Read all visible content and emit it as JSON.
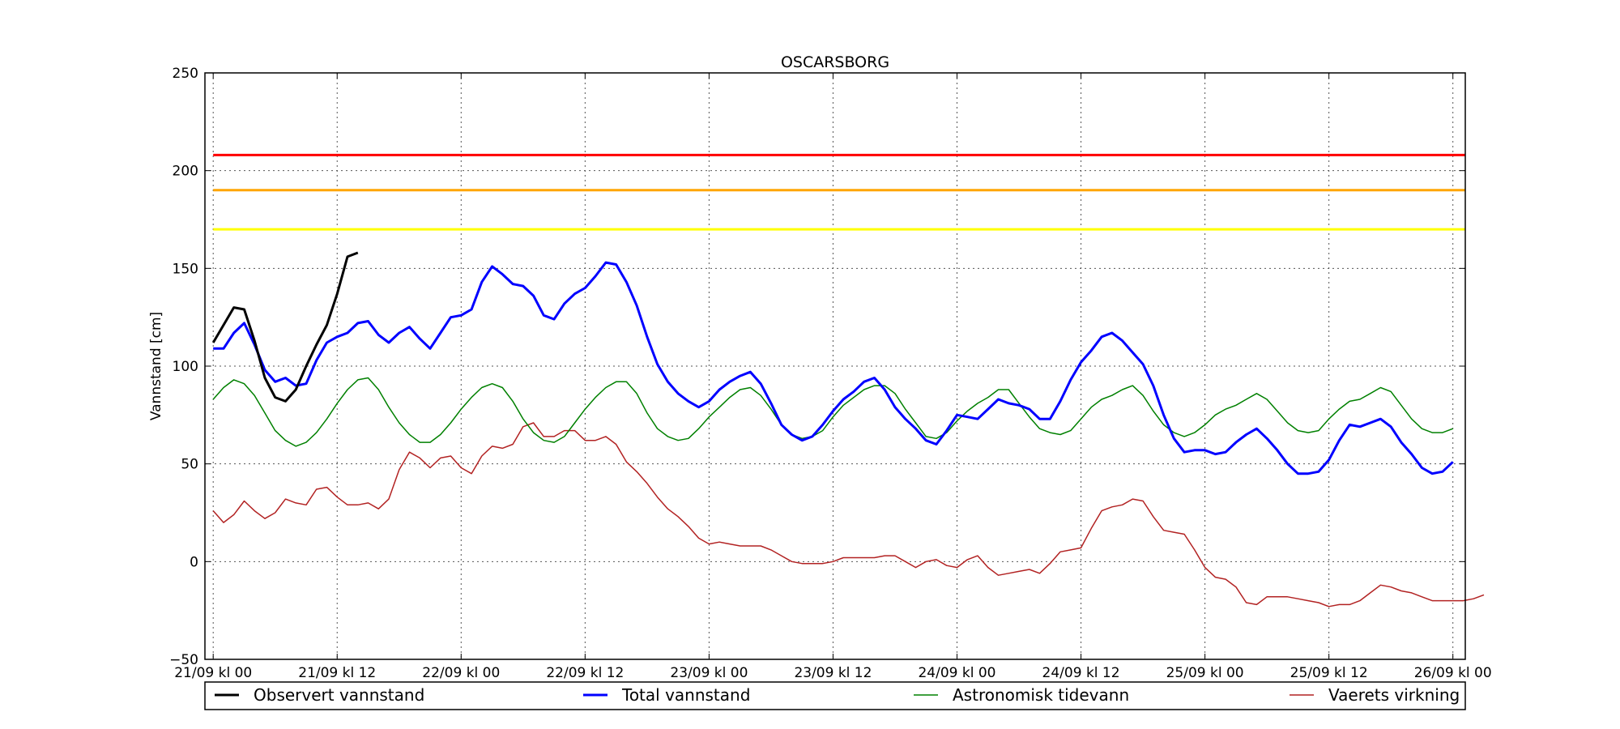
{
  "chart_data": {
    "type": "line",
    "title": "OSCARSBORG",
    "xlabel": "",
    "ylabel": "Vannstand [cm]",
    "ylim": [
      -50,
      250
    ],
    "yticks": [
      -50,
      0,
      50,
      100,
      150,
      200,
      250
    ],
    "xlim": [
      -0.8,
      121.2
    ],
    "x_unit": "hours since 21/09 kl 00",
    "xticks": [
      {
        "x": 0,
        "label": "21/09 kl 00"
      },
      {
        "x": 12,
        "label": "21/09 kl 12"
      },
      {
        "x": 24,
        "label": "22/09 kl 00"
      },
      {
        "x": 36,
        "label": "22/09 kl 12"
      },
      {
        "x": 48,
        "label": "23/09 kl 00"
      },
      {
        "x": 60,
        "label": "23/09 kl 12"
      },
      {
        "x": 72,
        "label": "24/09 kl 00"
      },
      {
        "x": 84,
        "label": "24/09 kl 12"
      },
      {
        "x": 96,
        "label": "25/09 kl 00"
      },
      {
        "x": 108,
        "label": "25/09 kl 12"
      },
      {
        "x": 120,
        "label": "26/09 kl 00"
      }
    ],
    "grid": true,
    "legend": "bottom",
    "thresholds": [
      {
        "value": 208,
        "color": "#ff0000"
      },
      {
        "value": 190,
        "color": "#ffa500"
      },
      {
        "value": 170,
        "color": "#ffff00"
      }
    ],
    "series": [
      {
        "name": "Observert vannstand",
        "color": "#000000",
        "width": 3,
        "x_start": 0,
        "x_step": 1,
        "values": [
          112,
          121,
          130,
          129,
          113,
          94,
          84,
          82,
          88,
          100,
          111,
          121,
          137,
          156,
          158
        ]
      },
      {
        "name": "Total vannstand",
        "color": "#0000ff",
        "width": 3,
        "x_start": 0,
        "x_step": 1,
        "values": [
          109,
          109,
          117,
          122,
          111,
          98,
          92,
          94,
          90,
          91,
          103,
          112,
          115,
          117,
          122,
          123,
          116,
          112,
          117,
          120,
          114,
          109,
          117,
          125,
          126,
          129,
          143,
          151,
          147,
          142,
          141,
          136,
          126,
          124,
          132,
          137,
          140,
          146,
          153,
          152,
          143,
          131,
          115,
          101,
          92,
          86,
          82,
          79,
          82,
          88,
          92,
          95,
          97,
          91,
          81,
          70,
          65,
          62,
          64,
          70,
          77,
          83,
          87,
          92,
          94,
          88,
          79,
          73,
          68,
          62,
          60,
          67,
          75,
          74,
          73,
          78,
          83,
          81,
          80,
          78,
          73,
          73,
          82,
          93,
          102,
          108,
          115,
          117,
          113,
          107,
          101,
          90,
          75,
          63,
          56,
          57,
          57,
          55,
          56,
          61,
          65,
          68,
          63,
          57,
          50,
          45,
          45,
          46,
          52,
          62,
          70,
          69,
          71,
          73,
          69,
          61,
          55,
          48,
          45,
          46,
          51
        ]
      },
      {
        "name": "Astronomisk tidevann",
        "color": "#008000",
        "width": 1.5,
        "x_start": 0,
        "x_step": 1,
        "values": [
          83,
          89,
          93,
          91,
          85,
          76,
          67,
          62,
          59,
          61,
          66,
          73,
          81,
          88,
          93,
          94,
          88,
          79,
          71,
          65,
          61,
          61,
          65,
          71,
          78,
          84,
          89,
          91,
          89,
          82,
          73,
          66,
          62,
          61,
          64,
          71,
          78,
          84,
          89,
          92,
          92,
          86,
          76,
          68,
          64,
          62,
          63,
          68,
          74,
          79,
          84,
          88,
          89,
          85,
          78,
          70,
          65,
          63,
          64,
          67,
          74,
          80,
          84,
          88,
          90,
          90,
          86,
          78,
          71,
          64,
          63,
          66,
          72,
          77,
          81,
          84,
          88,
          88,
          81,
          74,
          68,
          66,
          65,
          67,
          73,
          79,
          83,
          85,
          88,
          90,
          85,
          77,
          70,
          66,
          64,
          66,
          70,
          75,
          78,
          80,
          83,
          86,
          83,
          77,
          71,
          67,
          66,
          67,
          73,
          78,
          82,
          83,
          86,
          89,
          87,
          80,
          73,
          68,
          66,
          66,
          68
        ]
      },
      {
        "name": "Vaerets virkning",
        "color": "#b22222",
        "width": 1.5,
        "x_start": 0,
        "x_step": 1,
        "values": [
          26,
          20,
          24,
          31,
          26,
          22,
          25,
          32,
          30,
          29,
          37,
          38,
          33,
          29,
          29,
          30,
          27,
          32,
          47,
          56,
          53,
          48,
          53,
          54,
          48,
          45,
          54,
          59,
          58,
          60,
          69,
          71,
          64,
          64,
          67,
          67,
          62,
          62,
          64,
          60,
          51,
          46,
          40,
          33,
          27,
          23,
          18,
          12,
          9,
          10,
          9,
          8,
          8,
          8,
          6,
          3,
          0,
          -1,
          -1,
          -1,
          0,
          2,
          2,
          2,
          2,
          3,
          3,
          0,
          -3,
          0,
          1,
          -2,
          -3,
          1,
          3,
          -3,
          -7,
          -6,
          -5,
          -4,
          -6,
          -1,
          5,
          6,
          7,
          17,
          26,
          28,
          29,
          32,
          31,
          23,
          16,
          15,
          14,
          6,
          -3,
          -8,
          -9,
          -13,
          -21,
          -22,
          -18,
          -18,
          -18,
          -19,
          -20,
          -21,
          -23,
          -22,
          -22,
          -20,
          -16,
          -12,
          -13,
          -15,
          -16,
          -18,
          -20,
          -20,
          -20,
          -20,
          -19,
          -17
        ]
      }
    ]
  }
}
